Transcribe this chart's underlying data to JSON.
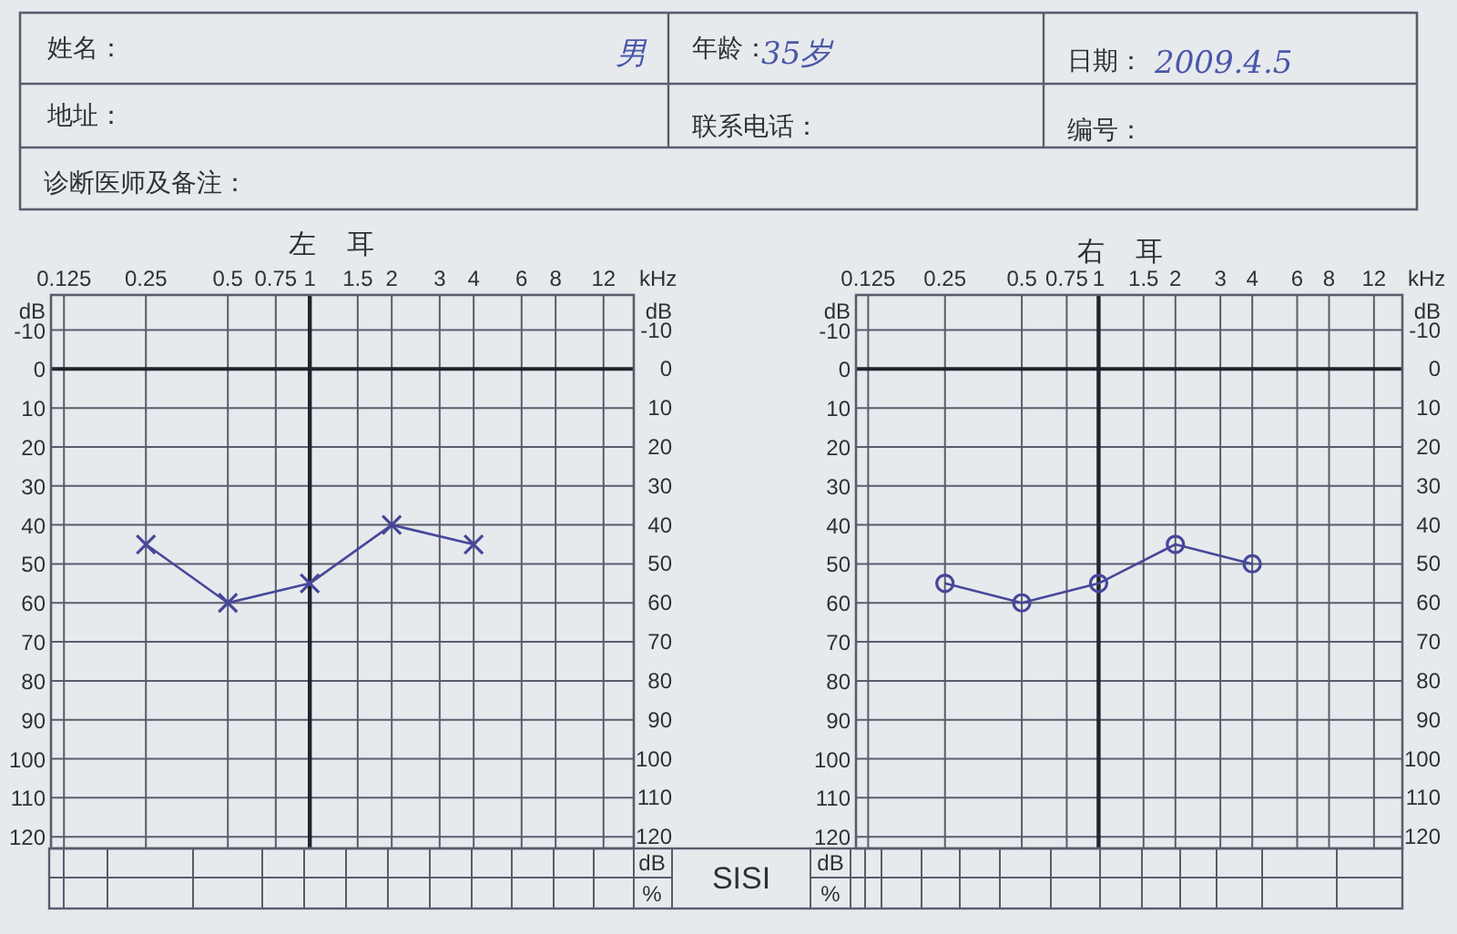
{
  "chart_data": [
    {
      "type": "other",
      "annotations": [
        "姓名：",
        "男",
        "年龄：",
        "35岁",
        "日期：",
        "2009.4.5",
        "地址：",
        "联系电话：",
        "编号：",
        "诊断医师及备注："
      ]
    },
    {
      "type": "line",
      "title": "左 耳",
      "xlabel": "kHz",
      "ylabel": "dB",
      "y2label": "dB",
      "x": [
        0.25,
        0.5,
        1,
        2,
        4
      ],
      "values": [
        45,
        60,
        55,
        40,
        45
      ],
      "color": "#46489a",
      "marker": "cross",
      "log": "x",
      "xlim": [
        0.112,
        15.5
      ],
      "xticks": [
        0.125,
        0.25,
        0.5,
        0.75,
        1,
        1.5,
        2,
        3,
        4,
        6,
        8,
        12
      ],
      "ylim": [
        123,
        -19
      ],
      "yticks": [
        -10,
        0,
        10,
        20,
        30,
        40,
        50,
        60,
        70,
        80,
        90,
        100,
        110,
        120
      ],
      "y2lim": [
        123,
        -19
      ],
      "y2ticks": [
        -10,
        0,
        10,
        20,
        30,
        40,
        50,
        60,
        70,
        80,
        90,
        100,
        110,
        120
      ],
      "grid": true,
      "ref_lines": [
        {
          "axis": "x",
          "value": 1
        },
        {
          "axis": "y",
          "value": 0
        }
      ]
    },
    {
      "type": "line",
      "title": "右 耳",
      "xlabel": "kHz",
      "ylabel": "dB",
      "y2label": "dB",
      "x": [
        0.25,
        0.5,
        1,
        2,
        4
      ],
      "values": [
        55,
        60,
        55,
        45,
        50
      ],
      "color": "#46489a",
      "marker": "circle",
      "log": "x",
      "xlim": [
        0.112,
        15.5
      ],
      "xticks": [
        0.125,
        0.25,
        0.5,
        0.75,
        1,
        1.5,
        2,
        3,
        4,
        6,
        8,
        12
      ],
      "ylim": [
        123,
        -19
      ],
      "yticks": [
        -10,
        0,
        10,
        20,
        30,
        40,
        50,
        60,
        70,
        80,
        90,
        100,
        110,
        120
      ],
      "y2lim": [
        123,
        -19
      ],
      "y2ticks": [
        -10,
        0,
        10,
        20,
        30,
        40,
        50,
        60,
        70,
        80,
        90,
        100,
        110,
        120
      ],
      "grid": true,
      "ref_lines": [
        {
          "axis": "x",
          "value": 1
        },
        {
          "axis": "y",
          "value": 0
        }
      ]
    },
    {
      "type": "other",
      "annotations": [
        "dB",
        "%",
        "SISI",
        "dB",
        "%"
      ]
    }
  ]
}
